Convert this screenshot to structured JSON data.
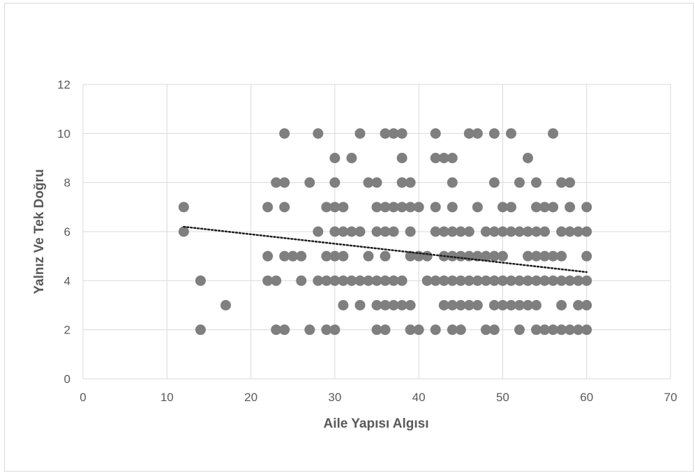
{
  "chart_data": {
    "type": "scatter",
    "title": "",
    "xlabel": "Aile Yapısı Algısı",
    "ylabel": "Yalnız Ve Tek Doğru",
    "xlim": [
      0,
      70
    ],
    "ylim": [
      0,
      12
    ],
    "xticks": [
      0,
      10,
      20,
      30,
      40,
      50,
      60,
      70
    ],
    "yticks": [
      0,
      2,
      4,
      6,
      8,
      10,
      12
    ],
    "grid": true,
    "legend": "none",
    "marker_color": "#7f7f7f",
    "trendline": {
      "type": "linear",
      "style": "dotted",
      "color": "#1a1a1a",
      "x": [
        12,
        60
      ],
      "y": [
        6.2,
        4.35
      ]
    },
    "points": [
      [
        24,
        10
      ],
      [
        28,
        10
      ],
      [
        33,
        10
      ],
      [
        36,
        10
      ],
      [
        37,
        10
      ],
      [
        38,
        10
      ],
      [
        42,
        10
      ],
      [
        46,
        10
      ],
      [
        47,
        10
      ],
      [
        49,
        10
      ],
      [
        51,
        10
      ],
      [
        56,
        10
      ],
      [
        30,
        9
      ],
      [
        32,
        9
      ],
      [
        38,
        9
      ],
      [
        42,
        9
      ],
      [
        43,
        9
      ],
      [
        44,
        9
      ],
      [
        53,
        9
      ],
      [
        23,
        8
      ],
      [
        24,
        8
      ],
      [
        27,
        8
      ],
      [
        30,
        8
      ],
      [
        34,
        8
      ],
      [
        35,
        8
      ],
      [
        38,
        8
      ],
      [
        39,
        8
      ],
      [
        44,
        8
      ],
      [
        49,
        8
      ],
      [
        52,
        8
      ],
      [
        54,
        8
      ],
      [
        57,
        8
      ],
      [
        58,
        8
      ],
      [
        12,
        7
      ],
      [
        22,
        7
      ],
      [
        24,
        7
      ],
      [
        29,
        7
      ],
      [
        30,
        7
      ],
      [
        31,
        7
      ],
      [
        35,
        7
      ],
      [
        36,
        7
      ],
      [
        37,
        7
      ],
      [
        38,
        7
      ],
      [
        39,
        7
      ],
      [
        40,
        7
      ],
      [
        42,
        7
      ],
      [
        44,
        7
      ],
      [
        47,
        7
      ],
      [
        50,
        7
      ],
      [
        51,
        7
      ],
      [
        54,
        7
      ],
      [
        55,
        7
      ],
      [
        56,
        7
      ],
      [
        58,
        7
      ],
      [
        60,
        7
      ],
      [
        12,
        6
      ],
      [
        28,
        6
      ],
      [
        30,
        6
      ],
      [
        31,
        6
      ],
      [
        32,
        6
      ],
      [
        33,
        6
      ],
      [
        35,
        6
      ],
      [
        36,
        6
      ],
      [
        37,
        6
      ],
      [
        39,
        6
      ],
      [
        42,
        6
      ],
      [
        43,
        6
      ],
      [
        44,
        6
      ],
      [
        45,
        6
      ],
      [
        46,
        6
      ],
      [
        48,
        6
      ],
      [
        49,
        6
      ],
      [
        50,
        6
      ],
      [
        51,
        6
      ],
      [
        52,
        6
      ],
      [
        53,
        6
      ],
      [
        54,
        6
      ],
      [
        55,
        6
      ],
      [
        57,
        6
      ],
      [
        58,
        6
      ],
      [
        59,
        6
      ],
      [
        60,
        6
      ],
      [
        22,
        5
      ],
      [
        24,
        5
      ],
      [
        25,
        5
      ],
      [
        26,
        5
      ],
      [
        29,
        5
      ],
      [
        30,
        5
      ],
      [
        31,
        5
      ],
      [
        34,
        5
      ],
      [
        36,
        5
      ],
      [
        39,
        5
      ],
      [
        40,
        5
      ],
      [
        41,
        5
      ],
      [
        43,
        5
      ],
      [
        44,
        5
      ],
      [
        45,
        5
      ],
      [
        46,
        5
      ],
      [
        47,
        5
      ],
      [
        48,
        5
      ],
      [
        49,
        5
      ],
      [
        50,
        5
      ],
      [
        53,
        5
      ],
      [
        54,
        5
      ],
      [
        55,
        5
      ],
      [
        56,
        5
      ],
      [
        57,
        5
      ],
      [
        60,
        5
      ],
      [
        14,
        4
      ],
      [
        22,
        4
      ],
      [
        23,
        4
      ],
      [
        26,
        4
      ],
      [
        28,
        4
      ],
      [
        29,
        4
      ],
      [
        30,
        4
      ],
      [
        31,
        4
      ],
      [
        32,
        4
      ],
      [
        33,
        4
      ],
      [
        34,
        4
      ],
      [
        35,
        4
      ],
      [
        36,
        4
      ],
      [
        37,
        4
      ],
      [
        38,
        4
      ],
      [
        41,
        4
      ],
      [
        42,
        4
      ],
      [
        43,
        4
      ],
      [
        44,
        4
      ],
      [
        45,
        4
      ],
      [
        46,
        4
      ],
      [
        47,
        4
      ],
      [
        48,
        4
      ],
      [
        49,
        4
      ],
      [
        50,
        4
      ],
      [
        51,
        4
      ],
      [
        52,
        4
      ],
      [
        53,
        4
      ],
      [
        54,
        4
      ],
      [
        55,
        4
      ],
      [
        56,
        4
      ],
      [
        57,
        4
      ],
      [
        58,
        4
      ],
      [
        59,
        4
      ],
      [
        60,
        4
      ],
      [
        17,
        3
      ],
      [
        31,
        3
      ],
      [
        33,
        3
      ],
      [
        35,
        3
      ],
      [
        36,
        3
      ],
      [
        37,
        3
      ],
      [
        38,
        3
      ],
      [
        39,
        3
      ],
      [
        43,
        3
      ],
      [
        44,
        3
      ],
      [
        45,
        3
      ],
      [
        46,
        3
      ],
      [
        47,
        3
      ],
      [
        49,
        3
      ],
      [
        50,
        3
      ],
      [
        51,
        3
      ],
      [
        52,
        3
      ],
      [
        53,
        3
      ],
      [
        54,
        3
      ],
      [
        57,
        3
      ],
      [
        59,
        3
      ],
      [
        60,
        3
      ],
      [
        14,
        2
      ],
      [
        23,
        2
      ],
      [
        24,
        2
      ],
      [
        27,
        2
      ],
      [
        29,
        2
      ],
      [
        30,
        2
      ],
      [
        35,
        2
      ],
      [
        36,
        2
      ],
      [
        39,
        2
      ],
      [
        40,
        2
      ],
      [
        42,
        2
      ],
      [
        44,
        2
      ],
      [
        45,
        2
      ],
      [
        48,
        2
      ],
      [
        49,
        2
      ],
      [
        52,
        2
      ],
      [
        54,
        2
      ],
      [
        55,
        2
      ],
      [
        56,
        2
      ],
      [
        57,
        2
      ],
      [
        58,
        2
      ],
      [
        59,
        2
      ],
      [
        60,
        2
      ]
    ]
  }
}
